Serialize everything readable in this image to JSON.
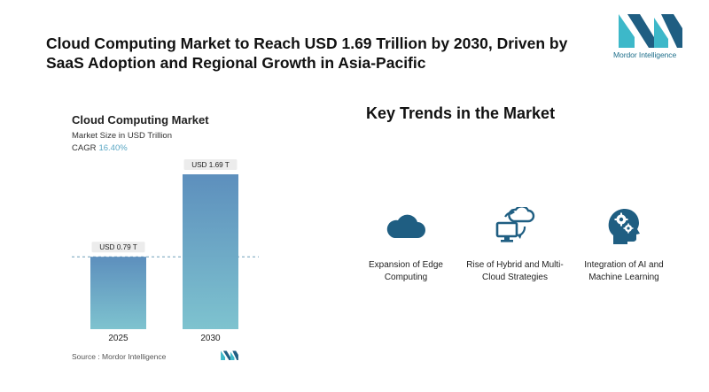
{
  "headline": "Cloud Computing Market to Reach USD 1.69 Trillion by 2030, Driven by SaaS Adoption and Regional Growth in Asia-Pacific",
  "logo": {
    "text": "Mordor Intelligence",
    "icon": "mordor-intelligence-logo"
  },
  "chart": {
    "title": "Cloud Computing Market",
    "subtitle": "Market Size in USD Trillion",
    "cagr_label": "CAGR",
    "cagr_value": "16.40%",
    "source": "Source :  Mordor Intelligence"
  },
  "chart_data": {
    "type": "bar",
    "title": "Cloud Computing Market",
    "ylabel": "Market Size in USD Trillion",
    "categories": [
      "2025",
      "2030"
    ],
    "values": [
      0.79,
      1.69
    ],
    "data_labels": [
      "USD 0.79 T",
      "USD 1.69 T"
    ],
    "ylim": [
      0,
      1.69
    ],
    "grid": false,
    "reference_line": "dashed line at 2025 value",
    "colors": {
      "bar_top": "#5d8fbd",
      "bar_bottom": "#7ec3cf",
      "label_bg": "#ececec"
    }
  },
  "trends": {
    "title": "Key Trends in the Market",
    "items": [
      {
        "label": "Expansion of Edge Computing",
        "icon": "cloud-icon"
      },
      {
        "label": "Rise of Hybrid and Multi-Cloud Strategies",
        "icon": "hybrid-cloud-icon"
      },
      {
        "label": "Integration of AI and Machine Learning",
        "icon": "ai-head-gears-icon"
      }
    ]
  },
  "colors": {
    "accent": "#1f5e82",
    "teal": "#5aa7c4"
  }
}
